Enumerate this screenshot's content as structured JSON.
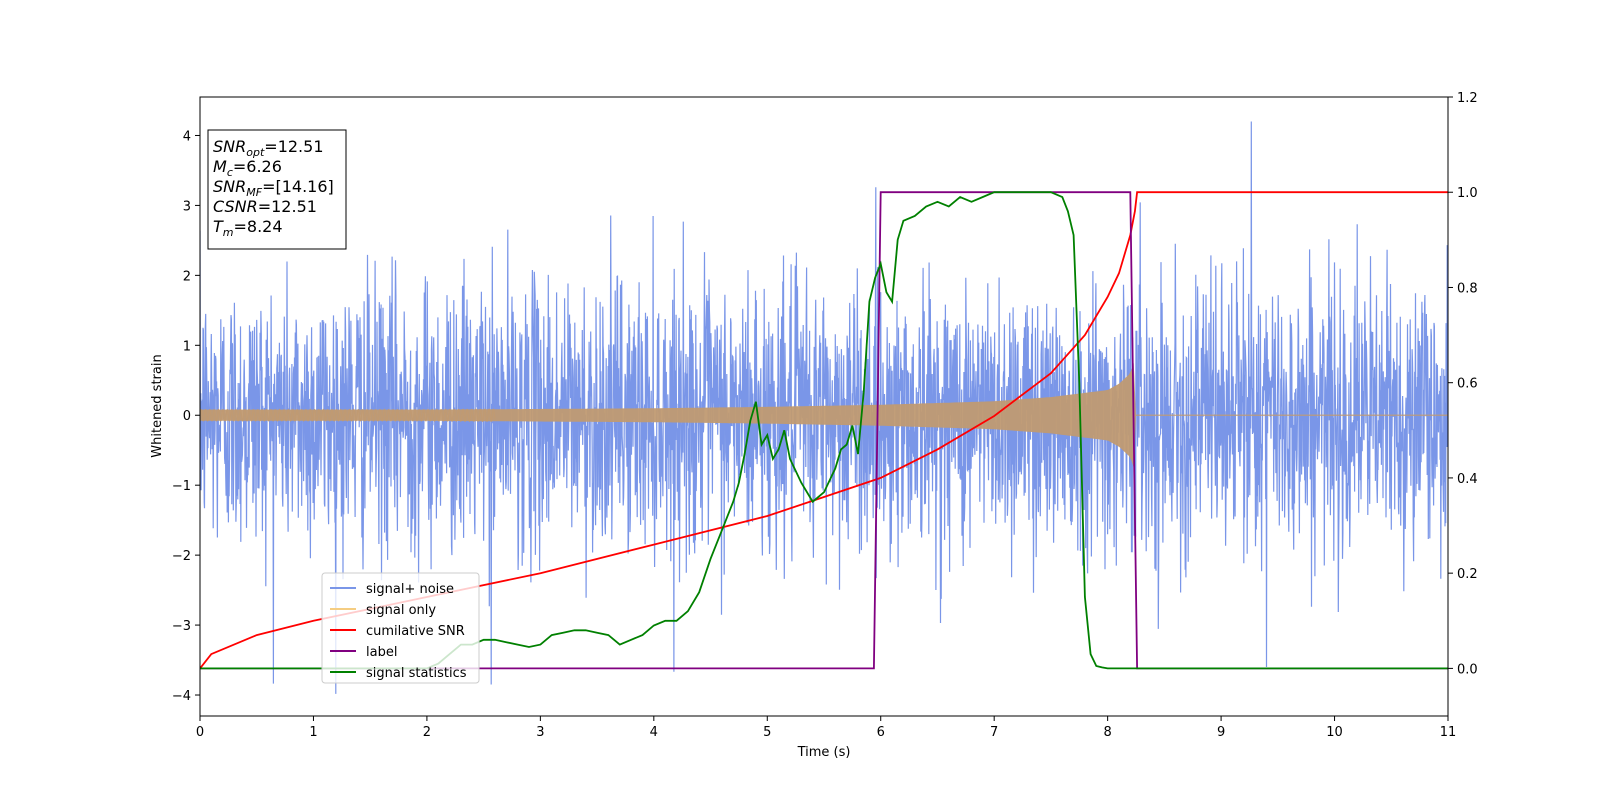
{
  "chart_data": {
    "type": "line",
    "title": "",
    "xlabel": "Time (s)",
    "ylabel": "Whitened strain",
    "xlim": [
      0,
      11
    ],
    "ylim_left": [
      -4.3,
      4.55
    ],
    "ylim_right": [
      -0.1,
      1.2
    ],
    "x_ticks": [
      0,
      1,
      2,
      3,
      4,
      5,
      6,
      7,
      8,
      9,
      10,
      11
    ],
    "y_ticks_left": [
      4,
      3,
      2,
      1,
      0,
      -1,
      -2,
      -3,
      -4
    ],
    "y_ticks_right": [
      1.2,
      1.0,
      0.8,
      0.6,
      0.4,
      0.2,
      0.0
    ],
    "grid": false,
    "legend_position": "lower-left",
    "colors": {
      "signal_noise": "#7a96e8",
      "signal_only": "#f5cd82",
      "signal_only_overlap": "#c09a72",
      "cumulative_snr": "#ff0000",
      "label": "#800080",
      "signal_statistics": "#008000"
    },
    "series": [
      {
        "name": "signal+ noise",
        "axis": "left",
        "description_values": {
          "noise_sigma": 1.0,
          "range": [
            -3.9,
            4.2
          ]
        }
      },
      {
        "name": "signal only",
        "axis": "left",
        "envelope": {
          "x": [
            0,
            2,
            4,
            5,
            6,
            7,
            7.5,
            8,
            8.1,
            8.2,
            8.24,
            8.25
          ],
          "amp": [
            0.08,
            0.08,
            0.1,
            0.12,
            0.15,
            0.2,
            0.26,
            0.36,
            0.45,
            0.6,
            0.8,
            0
          ]
        }
      },
      {
        "name": "cumilative SNR",
        "axis": "right",
        "x": [
          0,
          0.1,
          0.5,
          1,
          2,
          3,
          4,
          5,
          5.5,
          6,
          6.5,
          7,
          7.5,
          7.8,
          8,
          8.1,
          8.2,
          8.24,
          8.26,
          11
        ],
        "y": [
          0,
          0.03,
          0.07,
          0.1,
          0.15,
          0.2,
          0.26,
          0.32,
          0.36,
          0.4,
          0.46,
          0.53,
          0.62,
          0.7,
          0.78,
          0.83,
          0.91,
          0.96,
          1.0,
          1.0
        ]
      },
      {
        "name": "label",
        "axis": "right",
        "x": [
          0,
          5.94,
          6.0,
          8.2,
          8.26,
          11
        ],
        "y": [
          0,
          0,
          1,
          1,
          0,
          0
        ]
      },
      {
        "name": "signal statistics",
        "axis": "right",
        "x": [
          0,
          2,
          2.1,
          2.2,
          2.3,
          2.4,
          2.5,
          2.6,
          2.7,
          2.8,
          2.9,
          3.0,
          3.1,
          3.2,
          3.3,
          3.4,
          3.5,
          3.6,
          3.7,
          3.8,
          3.9,
          4.0,
          4.1,
          4.2,
          4.3,
          4.4,
          4.5,
          4.6,
          4.7,
          4.75,
          4.8,
          4.85,
          4.9,
          4.95,
          5.0,
          5.05,
          5.1,
          5.15,
          5.2,
          5.3,
          5.4,
          5.5,
          5.6,
          5.65,
          5.7,
          5.75,
          5.8,
          5.85,
          5.9,
          5.95,
          6.0,
          6.05,
          6.1,
          6.15,
          6.2,
          6.3,
          6.4,
          6.5,
          6.6,
          6.7,
          6.8,
          6.9,
          7.0,
          7.1,
          7.2,
          7.3,
          7.4,
          7.5,
          7.6,
          7.65,
          7.7,
          7.75,
          7.8,
          7.85,
          7.9,
          7.95,
          8.0,
          11
        ],
        "y": [
          0,
          0,
          0.01,
          0.03,
          0.05,
          0.05,
          0.06,
          0.06,
          0.055,
          0.05,
          0.045,
          0.05,
          0.07,
          0.075,
          0.08,
          0.08,
          0.075,
          0.07,
          0.05,
          0.06,
          0.07,
          0.09,
          0.1,
          0.1,
          0.12,
          0.16,
          0.23,
          0.29,
          0.35,
          0.39,
          0.45,
          0.52,
          0.56,
          0.47,
          0.49,
          0.44,
          0.46,
          0.5,
          0.44,
          0.39,
          0.35,
          0.37,
          0.42,
          0.46,
          0.47,
          0.51,
          0.45,
          0.58,
          0.77,
          0.82,
          0.85,
          0.79,
          0.77,
          0.9,
          0.94,
          0.95,
          0.97,
          0.98,
          0.97,
          0.99,
          0.98,
          0.99,
          1.0,
          1.0,
          1.0,
          1.0,
          1.0,
          1.0,
          0.99,
          0.96,
          0.91,
          0.6,
          0.15,
          0.03,
          0.005,
          0.002,
          0,
          0
        ]
      }
    ],
    "legend": [
      "signal+ noise",
      "signal only",
      "cumilative SNR",
      "label",
      "signal statistics"
    ],
    "info_box": [
      {
        "base": "SNR",
        "sub": "opt",
        "value": "=12.51"
      },
      {
        "base": "M",
        "sub": "c",
        "value": "=6.26"
      },
      {
        "base": "SNR",
        "sub": "MF",
        "value": "=[14.16]"
      },
      {
        "base": "CSNR",
        "sub": "",
        "value": "=12.51"
      },
      {
        "base": "T",
        "sub": "m",
        "value": "=8.24"
      }
    ]
  }
}
